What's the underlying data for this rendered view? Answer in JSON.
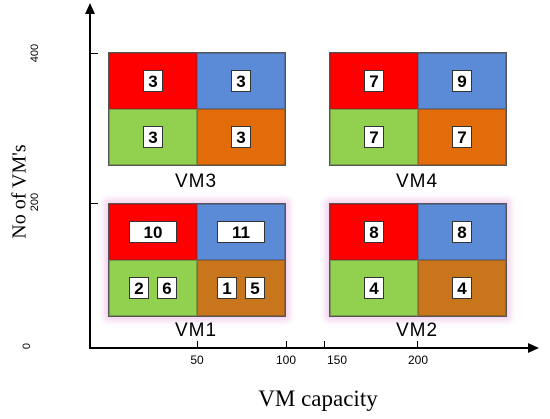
{
  "diagram": {
    "x_axis": {
      "title": "VM capacity",
      "ticks": [
        "50",
        "100",
        "150",
        "200"
      ]
    },
    "y_axis": {
      "title": "No of VM's",
      "ticks": [
        "0",
        "200",
        "400"
      ]
    },
    "colors": {
      "red": "#ff0000",
      "blue": "#5b8bd6",
      "green": "#92d050",
      "orange": "#e36c0a"
    },
    "blocks": {
      "vm3": {
        "label": "VM3",
        "red": [
          "3"
        ],
        "blue": [
          "3"
        ],
        "green": [
          "3"
        ],
        "orange": [
          "3"
        ]
      },
      "vm4": {
        "label": "VM4",
        "red": [
          "7"
        ],
        "blue": [
          "9"
        ],
        "green": [
          "7"
        ],
        "orange": [
          "7"
        ]
      },
      "vm1": {
        "label": "VM1",
        "red": [
          "10"
        ],
        "blue": [
          "11"
        ],
        "green": [
          "2",
          "6"
        ],
        "orange": [
          "1",
          "5"
        ]
      },
      "vm2": {
        "label": "VM2",
        "red": [
          "8"
        ],
        "blue": [
          "8"
        ],
        "green": [
          "4"
        ],
        "orange": [
          "4"
        ]
      }
    }
  }
}
